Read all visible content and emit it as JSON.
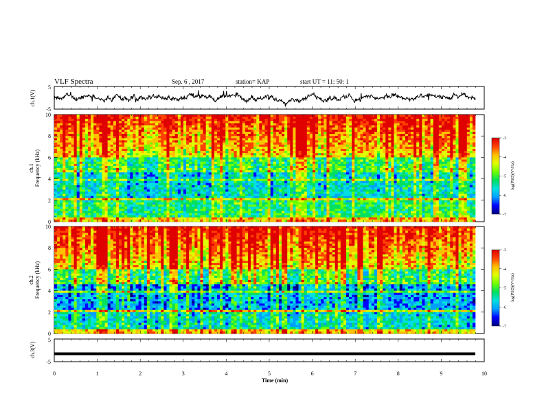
{
  "header": {
    "title": "VLF Spectra",
    "date": "Sep. 6  , 2017",
    "station": "station= KAP",
    "start": "start  UT  =   11: 50: 1"
  },
  "colors": {
    "colormap": [
      "#000080",
      "#0000ff",
      "#00a0ff",
      "#00e0e0",
      "#00e060",
      "#70ff00",
      "#e0ff00",
      "#ffc000",
      "#ff4000",
      "#e00000"
    ]
  },
  "chart_data": [
    {
      "type": "line",
      "name": "ch1-waveform",
      "ylabel": "ch.1(V)",
      "ylim": [
        -5,
        5
      ],
      "yticks": [
        "5",
        "-5"
      ],
      "xlim": [
        0,
        10
      ],
      "description_values": "noisy waveform around 0 V, roughly -2.5 to +2.5 V"
    },
    {
      "type": "heatmap",
      "name": "ch1-spectrogram",
      "ylabel_top": "ch.1",
      "ylabel": "Frequency  (kHz)",
      "ylim": [
        0,
        10
      ],
      "yticks": [
        "0",
        "2",
        "4",
        "6",
        "8",
        "10"
      ],
      "xlim": [
        0,
        10
      ],
      "colorbar": {
        "label": "log(PSD)(V²/Hz)",
        "range": [
          -7,
          -3
        ],
        "ticks": [
          "-3",
          "-4",
          "-5",
          "-6",
          "-7"
        ]
      }
    },
    {
      "type": "heatmap",
      "name": "ch2-spectrogram",
      "ylabel_top": "ch.2",
      "ylabel": "Frequency  (kHz)",
      "ylim": [
        0,
        10
      ],
      "yticks": [
        "0",
        "2",
        "4",
        "6",
        "8",
        "10"
      ],
      "xlim": [
        0,
        10
      ],
      "colorbar": {
        "label": "log(PSD)(V²/Hz)",
        "range": [
          -7,
          -3
        ],
        "ticks": [
          "-3",
          "-4",
          "-5",
          "-6",
          "-7"
        ]
      }
    },
    {
      "type": "line",
      "name": "ch3-waveform",
      "ylabel": "ch.3(V)",
      "ylim": [
        -5,
        5
      ],
      "yticks": [
        "5",
        "-5"
      ],
      "xlim": [
        0,
        10
      ],
      "values_constant": -1.5
    }
  ],
  "xaxis": {
    "label": "Time  (min)",
    "ticks": [
      "0",
      "1",
      "2",
      "3",
      "4",
      "5",
      "6",
      "7",
      "8",
      "9",
      "10"
    ]
  }
}
